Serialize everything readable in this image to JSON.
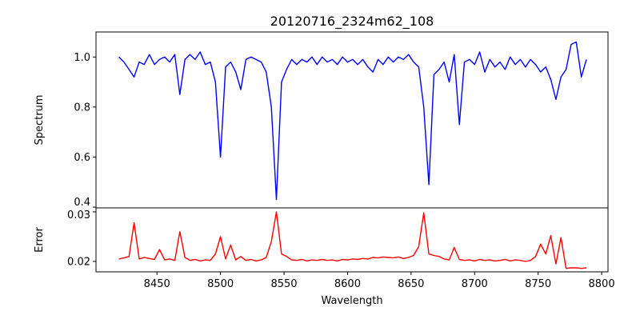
{
  "chart_data": [
    {
      "type": "line",
      "title": "20120716_2324m62_108",
      "xlabel": "",
      "ylabel": "Spectrum",
      "xlim": [
        8402,
        8805
      ],
      "ylim": [
        0.397,
        1.1
      ],
      "yticks": [
        "0.4",
        "0.6",
        "0.8",
        "1.0"
      ],
      "color": "#0000ff",
      "x_start": 8420,
      "x_step": 4,
      "values": [
        1.0,
        0.98,
        0.95,
        0.92,
        0.98,
        0.97,
        1.01,
        0.97,
        0.99,
        1.0,
        0.98,
        1.01,
        0.85,
        0.99,
        1.01,
        0.99,
        1.02,
        0.97,
        0.98,
        0.9,
        0.6,
        0.96,
        0.98,
        0.94,
        0.87,
        0.99,
        1.0,
        0.99,
        0.98,
        0.94,
        0.8,
        0.43,
        0.9,
        0.95,
        0.99,
        0.97,
        0.99,
        0.98,
        1.0,
        0.97,
        1.0,
        0.98,
        0.99,
        0.97,
        1.0,
        0.98,
        0.99,
        0.97,
        0.99,
        0.96,
        0.94,
        0.99,
        0.97,
        1.0,
        0.98,
        1.0,
        0.99,
        1.01,
        0.98,
        0.96,
        0.8,
        0.49,
        0.93,
        0.95,
        0.98,
        0.9,
        1.01,
        0.73,
        0.98,
        0.99,
        0.97,
        1.02,
        0.94,
        0.99,
        0.96,
        0.98,
        0.95,
        1.0,
        0.97,
        0.99,
        0.96,
        0.99,
        0.97,
        0.94,
        0.96,
        0.91,
        0.83,
        0.92,
        0.95,
        1.05,
        1.06,
        0.92,
        0.99
      ]
    },
    {
      "type": "line",
      "title": "",
      "xlabel": "Wavelength",
      "ylabel": "Error",
      "xlim": [
        8402,
        8805
      ],
      "ylim": [
        0.0179,
        0.0308
      ],
      "xticks": [
        "8450",
        "8500",
        "8550",
        "8600",
        "8650",
        "8700",
        "8750",
        "8800"
      ],
      "yticks": [
        "0.02",
        "0.03"
      ],
      "color": "#ff0000",
      "x_start": 8420,
      "x_step": 4,
      "values": [
        0.0205,
        0.0207,
        0.021,
        0.0278,
        0.0205,
        0.0208,
        0.0206,
        0.0204,
        0.0224,
        0.0203,
        0.0205,
        0.0202,
        0.026,
        0.0208,
        0.0202,
        0.0204,
        0.0201,
        0.0203,
        0.0202,
        0.0215,
        0.025,
        0.0205,
        0.0233,
        0.0203,
        0.021,
        0.0202,
        0.0204,
        0.0201,
        0.0203,
        0.0208,
        0.024,
        0.03,
        0.0215,
        0.021,
        0.0203,
        0.0202,
        0.0204,
        0.0201,
        0.0203,
        0.0202,
        0.0204,
        0.0202,
        0.0203,
        0.0201,
        0.0204,
        0.0203,
        0.0205,
        0.0204,
        0.0206,
        0.0205,
        0.0208,
        0.0207,
        0.0209,
        0.0208,
        0.0207,
        0.0209,
        0.0206,
        0.0208,
        0.0212,
        0.023,
        0.0298,
        0.0215,
        0.0212,
        0.021,
        0.0205,
        0.0203,
        0.0228,
        0.0204,
        0.0202,
        0.0203,
        0.0201,
        0.0204,
        0.0202,
        0.0203,
        0.0201,
        0.0202,
        0.0204,
        0.0201,
        0.0203,
        0.0202,
        0.02,
        0.0202,
        0.021,
        0.0235,
        0.0215,
        0.0252,
        0.0195,
        0.0248,
        0.0186,
        0.0187,
        0.0187,
        0.0186,
        0.0187
      ]
    }
  ]
}
